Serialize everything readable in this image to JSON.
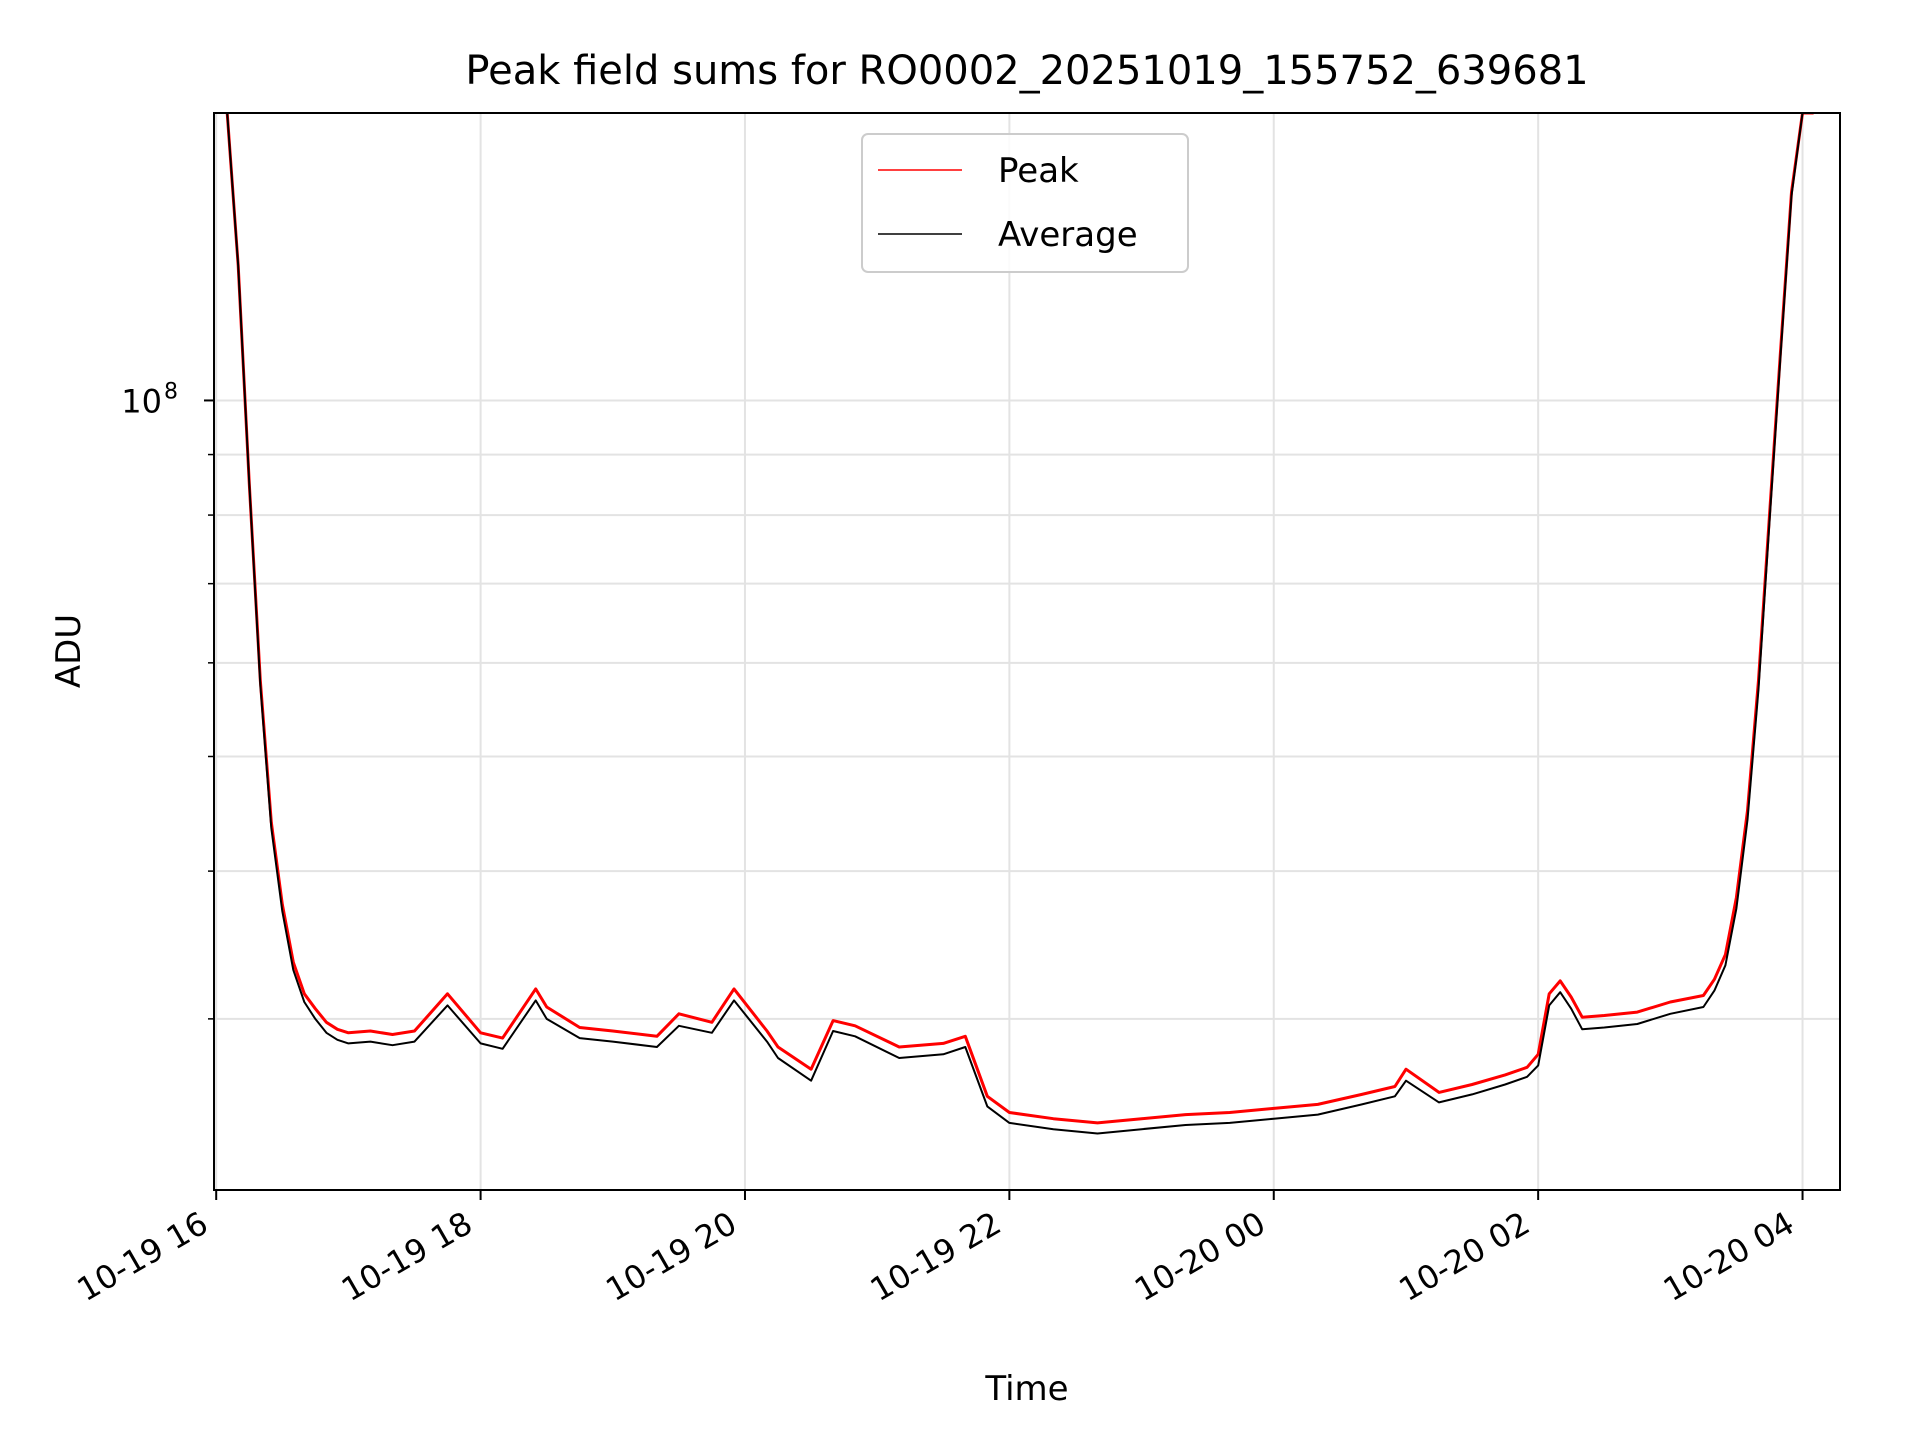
{
  "chart_data": {
    "type": "line",
    "title": "Peak field sums for RO0002_20251019_155752_639681",
    "xlabel": "Time",
    "ylabel": "ADU",
    "y_scale": "log",
    "ylim": [
      21500000,
      175000000
    ],
    "xlim": [
      "2025-10-19T15:59",
      "2025-10-20T04:17"
    ],
    "x_ticks": [
      {
        "at": "2025-10-19T16:00",
        "label": "10-19 16"
      },
      {
        "at": "2025-10-19T18:00",
        "label": "10-19 18"
      },
      {
        "at": "2025-10-19T20:00",
        "label": "10-19 20"
      },
      {
        "at": "2025-10-19T22:00",
        "label": "10-19 22"
      },
      {
        "at": "2025-10-20T00:00",
        "label": "10-20 00"
      },
      {
        "at": "2025-10-20T02:00",
        "label": "10-20 02"
      },
      {
        "at": "2025-10-20T04:00",
        "label": "10-20 04"
      }
    ],
    "y_ticks": [
      {
        "at": 100000000,
        "base": "10",
        "exp": "8"
      }
    ],
    "grid": true,
    "legend": {
      "placement": "top-center"
    },
    "series": [
      {
        "name": "Peak",
        "color": "#ff0000",
        "x": [
          "2025-10-19T16:05",
          "2025-10-19T16:10",
          "2025-10-19T16:15",
          "2025-10-19T16:20",
          "2025-10-19T16:25",
          "2025-10-19T16:30",
          "2025-10-19T16:35",
          "2025-10-19T16:40",
          "2025-10-19T16:45",
          "2025-10-19T16:50",
          "2025-10-19T16:55",
          "2025-10-19T17:00",
          "2025-10-19T17:10",
          "2025-10-19T17:20",
          "2025-10-19T17:30",
          "2025-10-19T17:45",
          "2025-10-19T18:00",
          "2025-10-19T18:10",
          "2025-10-19T18:25",
          "2025-10-19T18:30",
          "2025-10-19T18:45",
          "2025-10-19T19:00",
          "2025-10-19T19:20",
          "2025-10-19T19:30",
          "2025-10-19T19:45",
          "2025-10-19T19:55",
          "2025-10-19T20:10",
          "2025-10-19T20:15",
          "2025-10-19T20:30",
          "2025-10-19T20:40",
          "2025-10-19T20:50",
          "2025-10-19T21:10",
          "2025-10-19T21:30",
          "2025-10-19T21:40",
          "2025-10-19T21:50",
          "2025-10-19T22:00",
          "2025-10-19T22:20",
          "2025-10-19T22:40",
          "2025-10-19T23:00",
          "2025-10-19T23:20",
          "2025-10-19T23:40",
          "2025-10-20T00:00",
          "2025-10-20T00:20",
          "2025-10-20T00:40",
          "2025-10-20T00:55",
          "2025-10-20T01:00",
          "2025-10-20T01:15",
          "2025-10-20T01:30",
          "2025-10-20T01:45",
          "2025-10-20T01:55",
          "2025-10-20T02:00",
          "2025-10-20T02:05",
          "2025-10-20T02:10",
          "2025-10-20T02:15",
          "2025-10-20T02:20",
          "2025-10-20T02:30",
          "2025-10-20T02:45",
          "2025-10-20T03:00",
          "2025-10-20T03:15",
          "2025-10-20T03:20",
          "2025-10-20T03:25",
          "2025-10-20T03:30",
          "2025-10-20T03:35",
          "2025-10-20T03:40",
          "2025-10-20T03:45",
          "2025-10-20T03:50",
          "2025-10-20T03:55",
          "2025-10-20T04:00",
          "2025-10-20T04:05"
        ],
        "y": [
          175000000,
          130000000,
          85000000,
          58000000,
          44000000,
          37500000,
          33500000,
          31500000,
          30600000,
          29800000,
          29400000,
          29200000,
          29300000,
          29100000,
          29300000,
          31500000,
          29200000,
          28900000,
          31800000,
          30700000,
          29500000,
          29300000,
          29000000,
          30300000,
          29800000,
          31800000,
          29300000,
          28400000,
          27200000,
          29900000,
          29600000,
          28400000,
          28600000,
          29000000,
          25800000,
          25000000,
          24700000,
          24500000,
          24700000,
          24900000,
          25000000,
          25200000,
          25400000,
          25900000,
          26300000,
          27200000,
          26000000,
          26400000,
          26900000,
          27300000,
          28000000,
          31500000,
          32300000,
          31300000,
          30100000,
          30200000,
          30400000,
          31000000,
          31400000,
          32400000,
          34000000,
          38000000,
          45000000,
          58000000,
          80000000,
          110000000,
          150000000,
          175000000,
          175000000
        ]
      },
      {
        "name": "Average",
        "color": "#000000",
        "x": [
          "2025-10-19T16:05",
          "2025-10-19T16:10",
          "2025-10-19T16:15",
          "2025-10-19T16:20",
          "2025-10-19T16:25",
          "2025-10-19T16:30",
          "2025-10-19T16:35",
          "2025-10-19T16:40",
          "2025-10-19T16:45",
          "2025-10-19T16:50",
          "2025-10-19T16:55",
          "2025-10-19T17:00",
          "2025-10-19T17:10",
          "2025-10-19T17:20",
          "2025-10-19T17:30",
          "2025-10-19T17:45",
          "2025-10-19T18:00",
          "2025-10-19T18:10",
          "2025-10-19T18:25",
          "2025-10-19T18:30",
          "2025-10-19T18:45",
          "2025-10-19T19:00",
          "2025-10-19T19:20",
          "2025-10-19T19:30",
          "2025-10-19T19:45",
          "2025-10-19T19:55",
          "2025-10-19T20:10",
          "2025-10-19T20:15",
          "2025-10-19T20:30",
          "2025-10-19T20:40",
          "2025-10-19T20:50",
          "2025-10-19T21:10",
          "2025-10-19T21:30",
          "2025-10-19T21:40",
          "2025-10-19T21:50",
          "2025-10-19T22:00",
          "2025-10-19T22:20",
          "2025-10-19T22:40",
          "2025-10-19T23:00",
          "2025-10-19T23:20",
          "2025-10-19T23:40",
          "2025-10-20T00:00",
          "2025-10-20T00:20",
          "2025-10-20T00:40",
          "2025-10-20T00:55",
          "2025-10-20T01:00",
          "2025-10-20T01:15",
          "2025-10-20T01:30",
          "2025-10-20T01:45",
          "2025-10-20T01:55",
          "2025-10-20T02:00",
          "2025-10-20T02:05",
          "2025-10-20T02:10",
          "2025-10-20T02:15",
          "2025-10-20T02:20",
          "2025-10-20T02:30",
          "2025-10-20T02:45",
          "2025-10-20T03:00",
          "2025-10-20T03:15",
          "2025-10-20T03:20",
          "2025-10-20T03:25",
          "2025-10-20T03:30",
          "2025-10-20T03:35",
          "2025-10-20T03:40",
          "2025-10-20T03:45",
          "2025-10-20T03:50",
          "2025-10-20T03:55",
          "2025-10-20T04:00",
          "2025-10-20T04:05"
        ],
        "y": [
          175000000,
          130000000,
          85000000,
          57500000,
          43500000,
          37000000,
          33000000,
          31000000,
          30000000,
          29200000,
          28800000,
          28600000,
          28700000,
          28500000,
          28700000,
          30800000,
          28600000,
          28300000,
          31100000,
          30000000,
          28900000,
          28700000,
          28400000,
          29600000,
          29200000,
          31100000,
          28700000,
          27800000,
          26600000,
          29300000,
          29000000,
          27800000,
          28000000,
          28400000,
          25300000,
          24500000,
          24200000,
          24000000,
          24200000,
          24400000,
          24500000,
          24700000,
          24900000,
          25400000,
          25800000,
          26600000,
          25500000,
          25900000,
          26400000,
          26800000,
          27400000,
          30800000,
          31600000,
          30600000,
          29400000,
          29500000,
          29700000,
          30300000,
          30700000,
          31700000,
          33300000,
          37200000,
          44200000,
          57000000,
          79000000,
          109000000,
          149000000,
          175000000,
          175000000
        ]
      }
    ]
  }
}
